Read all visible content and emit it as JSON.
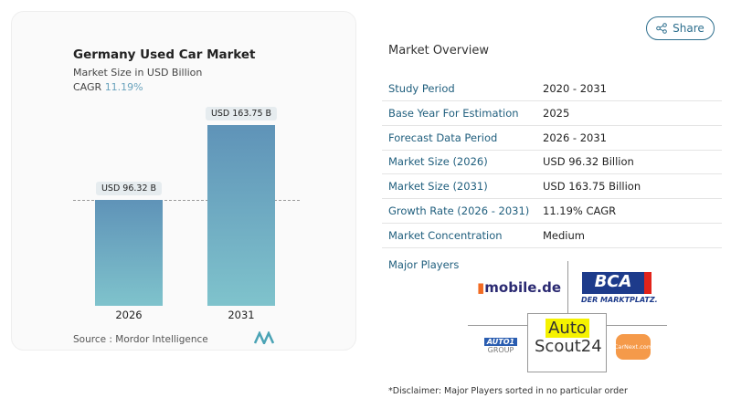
{
  "header": {
    "share_label": "Share",
    "share_icon": "share-icon"
  },
  "chart_card": {
    "title": "Germany Used Car Market",
    "subtitle": "Market Size in USD Billion",
    "cagr_label": "CAGR",
    "cagr_value": "11.19%",
    "source": "Source :  Mordor Intelligence"
  },
  "chart_data": {
    "type": "bar",
    "title": "Germany Used Car Market",
    "ylabel": "Market Size in USD Billion",
    "categories": [
      "2026",
      "2031"
    ],
    "values": [
      96.32,
      163.75
    ],
    "data_labels": [
      "USD 96.32 B",
      "USD 163.75 B"
    ],
    "colors": [
      "#5f93b8",
      "#7fc3cc"
    ]
  },
  "overview": {
    "title": "Market Overview",
    "rows": [
      {
        "key": "Study Period",
        "value": "2020 - 2031"
      },
      {
        "key": "Base Year For Estimation",
        "value": "2025"
      },
      {
        "key": "Forecast Data Period",
        "value": "2026 - 2031"
      },
      {
        "key": "Market Size (2026)",
        "value": "USD 96.32 Billion"
      },
      {
        "key": "Market Size (2031)",
        "value": "USD 163.75 Billion"
      },
      {
        "key": "Growth Rate (2026 - 2031)",
        "value": "11.19% CAGR"
      },
      {
        "key": "Market Concentration",
        "value": "Medium"
      }
    ],
    "major_players_label": "Major Players",
    "players": [
      "mobile.de",
      "BCA",
      "AutoScout24",
      "AUTO1 GROUP",
      "CarNext.com"
    ],
    "disclaimer": "*Disclaimer: Major Players sorted in no particular order"
  }
}
